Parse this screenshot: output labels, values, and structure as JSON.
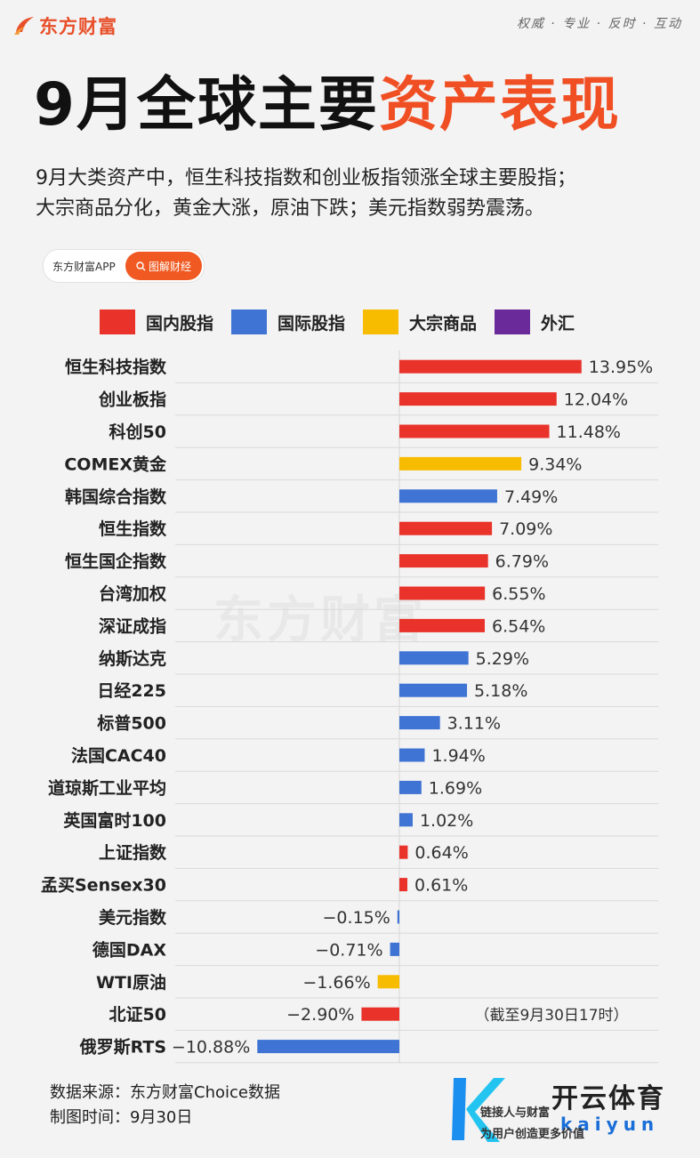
{
  "header": {
    "logo_text": "东方财富",
    "slogan": "权威 · 专业 · 反时 · 互动"
  },
  "title": {
    "part1": "9月全球主要",
    "part2": "资产表现"
  },
  "summary": {
    "line1": "9月大类资产中，恒生科技指数和创业板指领涨全球主要股指；",
    "line2": "大宗商品分化，黄金大涨，原油下跌；美元指数弱势震荡。"
  },
  "app_pill": {
    "app_name": "东方财富APP",
    "button_label": "图解财经"
  },
  "legend": [
    {
      "label": "国内股指",
      "color": "#e8322a"
    },
    {
      "label": "国际股指",
      "color": "#3f74d4"
    },
    {
      "label": "大宗商品",
      "color": "#f7bc00"
    },
    {
      "label": "外汇",
      "color": "#6a2a9a"
    }
  ],
  "chart_data": {
    "type": "bar",
    "orientation": "horizontal",
    "unit": "%",
    "categories": [
      "恒生科技指数",
      "创业板指",
      "科创50",
      "COMEX黄金",
      "韩国综合指数",
      "恒生指数",
      "恒生国企指数",
      "台湾加权",
      "深证成指",
      "纳斯达克",
      "日经225",
      "标普500",
      "法国CAC40",
      "道琼斯工业平均",
      "英国富时100",
      "上证指数",
      "孟买Sensex30",
      "美元指数",
      "德国DAX",
      "WTI原油",
      "北证50",
      "俄罗斯RTS"
    ],
    "values": [
      13.95,
      12.04,
      11.48,
      9.34,
      7.49,
      7.09,
      6.79,
      6.55,
      6.54,
      5.29,
      5.18,
      3.11,
      1.94,
      1.69,
      1.02,
      0.64,
      0.61,
      -0.15,
      -0.71,
      -1.66,
      -2.9,
      -10.88
    ],
    "value_labels": [
      "13.95%",
      "12.04%",
      "11.48%",
      "9.34%",
      "7.49%",
      "7.09%",
      "6.79%",
      "6.55%",
      "6.54%",
      "5.29%",
      "5.18%",
      "3.11%",
      "1.94%",
      "1.69%",
      "1.02%",
      "0.64%",
      "0.61%",
      "−0.15%",
      "−0.71%",
      "−1.66%",
      "−2.90%",
      "−10.88%"
    ],
    "groups": [
      "domestic",
      "domestic",
      "domestic",
      "commodity",
      "intl",
      "domestic",
      "domestic",
      "domestic",
      "domestic",
      "intl",
      "intl",
      "intl",
      "intl",
      "intl",
      "intl",
      "domestic",
      "domestic",
      "intl",
      "intl",
      "commodity",
      "domestic",
      "intl"
    ],
    "group_colors": {
      "domestic": "#e8322a",
      "intl": "#3f74d4",
      "commodity": "#f7bc00",
      "fx": "#6a2a9a"
    },
    "annotation": "（截至9月30日17时）"
  },
  "watermark": "东方财富",
  "footer": {
    "source": "数据来源：东方财富Choice数据",
    "date": "制图时间：9月30日"
  },
  "bottom_logo": {
    "text1": "开云体育",
    "text2": "kaiyun",
    "slogan1": "链接人与财富",
    "slogan2": "为用户创造更多价值"
  }
}
